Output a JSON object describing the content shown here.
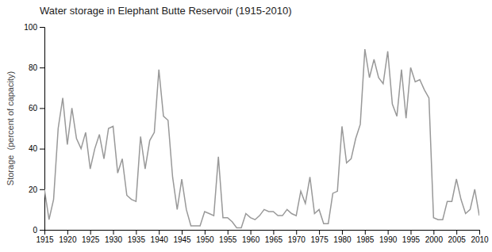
{
  "chart_data": {
    "type": "line",
    "title": "Water storage in Elephant Butte Reservoir (1915-2010)",
    "ylabel": "Storage  (percent of capacity)",
    "x": [
      1915,
      1916,
      1917,
      1918,
      1919,
      1920,
      1921,
      1922,
      1923,
      1924,
      1925,
      1926,
      1927,
      1928,
      1929,
      1930,
      1931,
      1932,
      1933,
      1934,
      1935,
      1936,
      1937,
      1938,
      1939,
      1940,
      1941,
      1942,
      1943,
      1944,
      1945,
      1946,
      1947,
      1948,
      1949,
      1950,
      1951,
      1952,
      1953,
      1954,
      1955,
      1956,
      1957,
      1958,
      1959,
      1960,
      1961,
      1962,
      1963,
      1964,
      1965,
      1966,
      1967,
      1968,
      1969,
      1970,
      1971,
      1972,
      1973,
      1974,
      1975,
      1976,
      1977,
      1978,
      1979,
      1980,
      1981,
      1982,
      1983,
      1984,
      1985,
      1986,
      1987,
      1988,
      1989,
      1990,
      1991,
      1992,
      1993,
      1994,
      1995,
      1996,
      1997,
      1998,
      1999,
      2000,
      2001,
      2002,
      2003,
      2004,
      2005,
      2006,
      2007,
      2008,
      2009,
      2010
    ],
    "values": [
      20,
      5,
      15,
      50,
      65,
      42,
      60,
      45,
      40,
      48,
      30,
      40,
      47,
      35,
      50,
      51,
      28,
      35,
      17,
      15,
      14,
      46,
      30,
      44,
      48,
      79,
      56,
      54,
      26,
      10,
      25,
      10,
      2,
      2,
      2,
      9,
      8,
      7,
      36,
      6,
      6,
      4,
      1,
      1,
      8,
      6,
      5,
      7,
      10,
      9,
      9,
      7,
      7,
      10,
      8,
      7,
      19,
      13,
      26,
      8,
      10,
      3,
      3,
      18,
      19,
      51,
      33,
      35,
      45,
      52,
      89,
      75,
      84,
      75,
      72,
      88,
      62,
      56,
      79,
      55,
      80,
      73,
      74,
      69,
      65,
      6,
      5,
      5,
      14,
      14,
      25,
      15,
      8,
      10,
      20,
      7
    ],
    "color": "#999999",
    "xlim": [
      1915,
      2010
    ],
    "ylim": [
      0,
      100
    ],
    "xticks": [
      1915,
      1920,
      1925,
      1930,
      1935,
      1940,
      1945,
      1950,
      1955,
      1960,
      1965,
      1970,
      1975,
      1980,
      1985,
      1990,
      1995,
      2000,
      2005,
      2010
    ],
    "yticks": [
      0,
      20,
      40,
      60,
      80,
      100
    ],
    "grid": false
  }
}
